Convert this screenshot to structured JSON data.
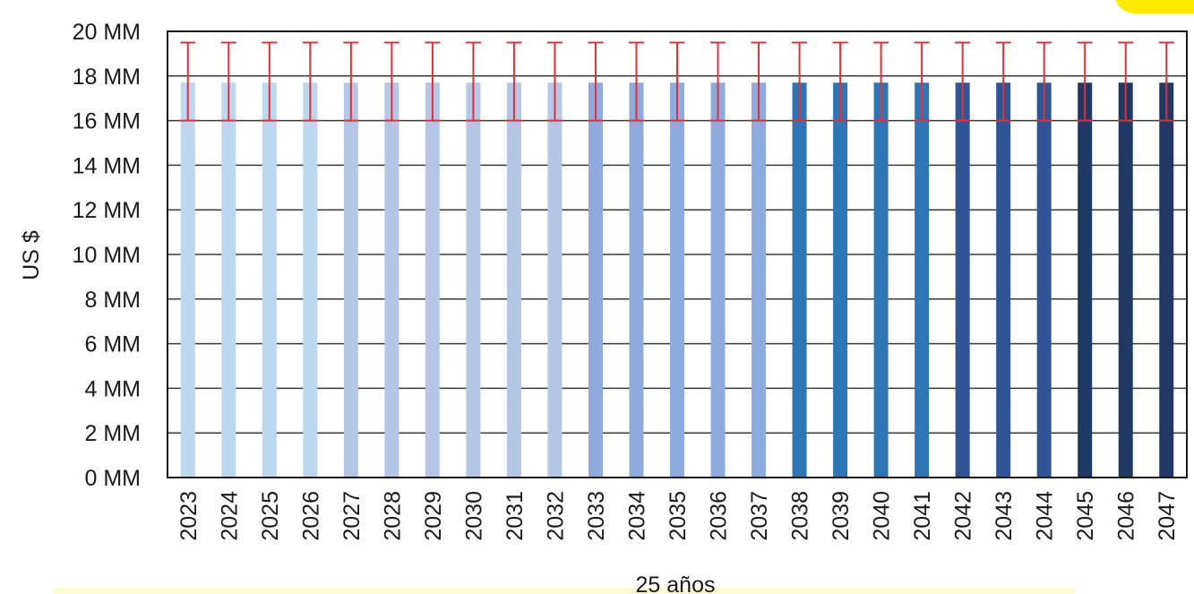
{
  "chart_data": {
    "type": "bar",
    "title": "",
    "xlabel": "25 años",
    "ylabel": "US $",
    "ylim": [
      0,
      20
    ],
    "yunit_suffix": " MM",
    "yticks": [
      0,
      2,
      4,
      6,
      8,
      10,
      12,
      14,
      16,
      18,
      20
    ],
    "ytick_labels": [
      "0 MM",
      "2 MM",
      "4 MM",
      "6 MM",
      "8 MM",
      "10 MM",
      "12 MM",
      "14 MM",
      "16 MM",
      "18 MM",
      "20 MM"
    ],
    "grid": true,
    "legend": "none",
    "categories": [
      "2023",
      "2024",
      "2025",
      "2026",
      "2027",
      "2028",
      "2029",
      "2030",
      "2031",
      "2032",
      "2033",
      "2034",
      "2035",
      "2036",
      "2037",
      "2038",
      "2039",
      "2040",
      "2041",
      "2042",
      "2043",
      "2044",
      "2045",
      "2046",
      "2047"
    ],
    "values": [
      17.7,
      17.7,
      17.7,
      17.7,
      17.7,
      17.7,
      17.7,
      17.7,
      17.7,
      17.7,
      17.7,
      17.7,
      17.7,
      17.7,
      17.7,
      17.7,
      17.7,
      17.7,
      17.7,
      17.7,
      17.7,
      17.7,
      17.7,
      17.7,
      17.7
    ],
    "error_low": [
      16,
      16,
      16,
      16,
      16,
      16,
      16,
      16,
      16,
      16,
      16,
      16,
      16,
      16,
      16,
      16,
      16,
      16,
      16,
      16,
      16,
      16,
      16,
      16,
      16
    ],
    "error_high": [
      19.5,
      19.5,
      19.5,
      19.5,
      19.5,
      19.5,
      19.5,
      19.5,
      19.5,
      19.5,
      19.5,
      19.5,
      19.5,
      19.5,
      19.5,
      19.5,
      19.5,
      19.5,
      19.5,
      19.5,
      19.5,
      19.5,
      19.5,
      19.5,
      19.5
    ],
    "bar_colors": [
      "#bdd7ee",
      "#bdd7ee",
      "#bdd7ee",
      "#bdd7ee",
      "#b4c7e7",
      "#b4c7e7",
      "#b4c7e7",
      "#b4c7e7",
      "#b4c7e7",
      "#b4c7e7",
      "#8faadc",
      "#8faadc",
      "#8faadc",
      "#8faadc",
      "#8faadc",
      "#2e75b6",
      "#2e75b6",
      "#2e75b6",
      "#2e75b6",
      "#2f5597",
      "#2f5597",
      "#2f5597",
      "#203864",
      "#203864",
      "#203864"
    ],
    "error_bar_color": "#e0303a"
  },
  "colors": {
    "corner_badge": "#ffea00",
    "caption_strip": "#fffbd6",
    "gridline": "#3a3a3a",
    "frame": "#1a1a1a"
  }
}
